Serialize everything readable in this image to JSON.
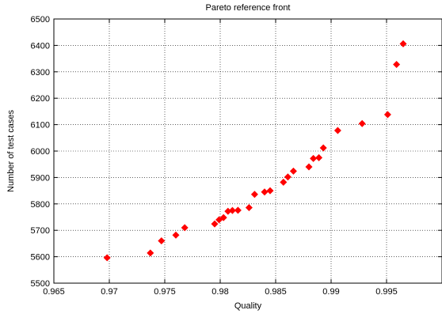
{
  "chart_data": {
    "type": "scatter",
    "title": "Pareto reference front",
    "xlabel": "Quality",
    "ylabel": "Number of test cases",
    "xlim": [
      0.965,
      1.0
    ],
    "ylim": [
      5500,
      6500
    ],
    "grid": true,
    "xticks": [
      0.965,
      0.97,
      0.975,
      0.98,
      0.985,
      0.99,
      0.995
    ],
    "xtick_labels": [
      "0.965",
      "0.97",
      "0.975",
      "0.98",
      "0.985",
      "0.99",
      "0.995"
    ],
    "yticks": [
      5500,
      5600,
      5700,
      5800,
      5900,
      6000,
      6100,
      6200,
      6300,
      6400,
      6500
    ],
    "ytick_labels": [
      "5500",
      "5600",
      "5700",
      "5800",
      "5900",
      "6000",
      "6100",
      "6200",
      "6300",
      "6400",
      "6500"
    ],
    "marker": "diamond",
    "color": "#ff0000",
    "series": [
      {
        "points": [
          [
            0.9698,
            5596
          ],
          [
            0.9737,
            5614
          ],
          [
            0.9747,
            5660
          ],
          [
            0.976,
            5682
          ],
          [
            0.9768,
            5710
          ],
          [
            0.9795,
            5724
          ],
          [
            0.9799,
            5740
          ],
          [
            0.9803,
            5748
          ],
          [
            0.9807,
            5772
          ],
          [
            0.9811,
            5775
          ],
          [
            0.9816,
            5776
          ],
          [
            0.9826,
            5786
          ],
          [
            0.9831,
            5836
          ],
          [
            0.984,
            5845
          ],
          [
            0.9845,
            5850
          ],
          [
            0.9857,
            5882
          ],
          [
            0.9861,
            5902
          ],
          [
            0.9866,
            5924
          ],
          [
            0.988,
            5940
          ],
          [
            0.9884,
            5972
          ],
          [
            0.9889,
            5975
          ],
          [
            0.9893,
            6012
          ],
          [
            0.9906,
            6078
          ],
          [
            0.9928,
            6104
          ],
          [
            0.9951,
            6138
          ],
          [
            0.9959,
            6328
          ],
          [
            0.9965,
            6406
          ]
        ]
      }
    ]
  }
}
